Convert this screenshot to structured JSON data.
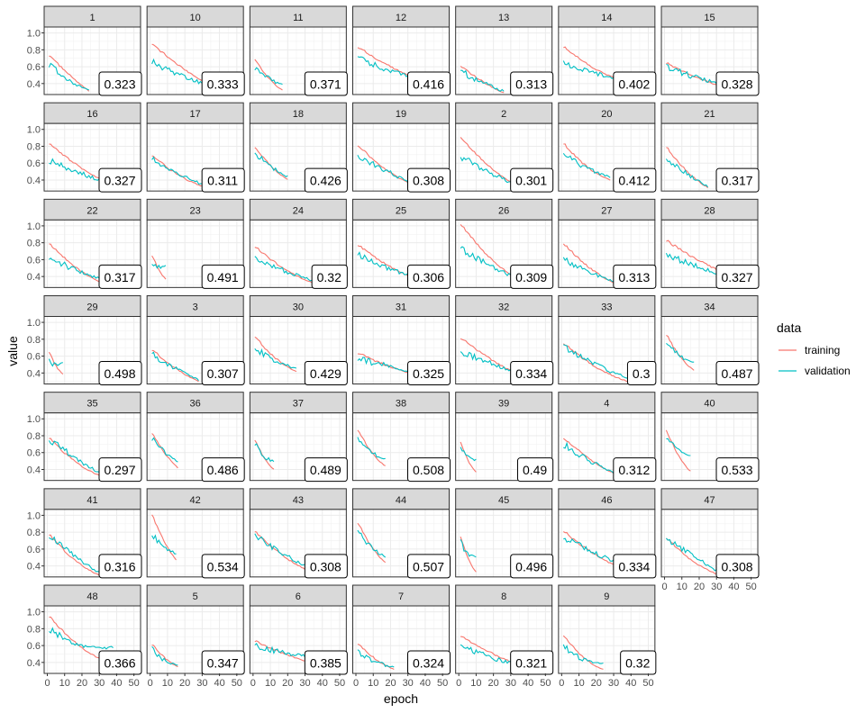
{
  "chart_data": {
    "type": "line",
    "title": "",
    "xlabel": "epoch",
    "ylabel": "value",
    "xlim": [
      0,
      52
    ],
    "ylim": [
      0.27,
      1.07
    ],
    "x_ticks": [
      0,
      10,
      20,
      30,
      40,
      50
    ],
    "y_ticks": [
      0.4,
      0.6,
      0.8,
      1.0
    ],
    "y_tick_labels": [
      "0.4",
      "0.6",
      "0.8",
      "1.0"
    ],
    "grid": true,
    "legend": {
      "title": "data",
      "position": "right",
      "entries": [
        {
          "name": "training",
          "color": "#F8766D"
        },
        {
          "name": "validation",
          "color": "#00BFC4"
        }
      ]
    },
    "series_colors": {
      "training": "#F8766D",
      "validation": "#00BFC4"
    },
    "facets": [
      {
        "label": "1",
        "badge": "0.323",
        "epochs": 24,
        "train": [
          0.74,
          0.49,
          0.31
        ],
        "val": [
          0.62,
          0.42,
          0.32
        ]
      },
      {
        "label": "10",
        "badge": "0.333",
        "epochs": 40,
        "train": [
          0.88,
          0.5,
          0.34
        ],
        "val": [
          0.66,
          0.45,
          0.34
        ]
      },
      {
        "label": "11",
        "badge": "0.371",
        "epochs": 17,
        "train": [
          0.7,
          0.42,
          0.32
        ],
        "val": [
          0.58,
          0.45,
          0.38
        ]
      },
      {
        "label": "12",
        "badge": "0.416",
        "epochs": 45,
        "train": [
          0.84,
          0.52,
          0.4
        ],
        "val": [
          0.7,
          0.5,
          0.42
        ]
      },
      {
        "label": "13",
        "badge": "0.313",
        "epochs": 26,
        "train": [
          0.62,
          0.4,
          0.29
        ],
        "val": [
          0.55,
          0.4,
          0.31
        ]
      },
      {
        "label": "14",
        "badge": "0.402",
        "epochs": 40,
        "train": [
          0.84,
          0.5,
          0.4
        ],
        "val": [
          0.65,
          0.5,
          0.43
        ]
      },
      {
        "label": "15",
        "badge": "0.328",
        "epochs": 45,
        "train": [
          0.65,
          0.4,
          0.3
        ],
        "val": [
          0.6,
          0.42,
          0.34
        ]
      },
      {
        "label": "16",
        "badge": "0.327",
        "epochs": 40,
        "train": [
          0.84,
          0.48,
          0.32
        ],
        "val": [
          0.64,
          0.46,
          0.33
        ]
      },
      {
        "label": "17",
        "badge": "0.311",
        "epochs": 35,
        "train": [
          0.7,
          0.38,
          0.3
        ],
        "val": [
          0.65,
          0.44,
          0.31
        ]
      },
      {
        "label": "18",
        "badge": "0.426",
        "epochs": 20,
        "train": [
          0.8,
          0.52,
          0.41
        ],
        "val": [
          0.72,
          0.54,
          0.44
        ]
      },
      {
        "label": "19",
        "badge": "0.308",
        "epochs": 40,
        "train": [
          0.82,
          0.4,
          0.29
        ],
        "val": [
          0.7,
          0.45,
          0.31
        ]
      },
      {
        "label": "2",
        "badge": "0.301",
        "epochs": 38,
        "train": [
          0.92,
          0.45,
          0.3
        ],
        "val": [
          0.68,
          0.46,
          0.3
        ]
      },
      {
        "label": "20",
        "badge": "0.412",
        "epochs": 28,
        "train": [
          0.84,
          0.5,
          0.4
        ],
        "val": [
          0.7,
          0.52,
          0.43
        ]
      },
      {
        "label": "21",
        "badge": "0.317",
        "epochs": 25,
        "train": [
          0.8,
          0.45,
          0.31
        ],
        "val": [
          0.66,
          0.46,
          0.32
        ]
      },
      {
        "label": "22",
        "badge": "0.317",
        "epochs": 33,
        "train": [
          0.8,
          0.45,
          0.31
        ],
        "val": [
          0.64,
          0.44,
          0.36
        ]
      },
      {
        "label": "23",
        "badge": "0.491",
        "epochs": 9,
        "train": [
          0.66,
          0.45,
          0.37
        ],
        "val": [
          0.55,
          0.5,
          0.52
        ]
      },
      {
        "label": "24",
        "badge": "0.32",
        "epochs": 38,
        "train": [
          0.76,
          0.42,
          0.3
        ],
        "val": [
          0.62,
          0.44,
          0.33
        ]
      },
      {
        "label": "25",
        "badge": "0.306",
        "epochs": 45,
        "train": [
          0.78,
          0.42,
          0.3
        ],
        "val": [
          0.66,
          0.44,
          0.32
        ]
      },
      {
        "label": "26",
        "badge": "0.309",
        "epochs": 40,
        "train": [
          1.03,
          0.48,
          0.31
        ],
        "val": [
          0.73,
          0.48,
          0.32
        ]
      },
      {
        "label": "27",
        "badge": "0.313",
        "epochs": 33,
        "train": [
          0.8,
          0.43,
          0.3
        ],
        "val": [
          0.6,
          0.42,
          0.33
        ]
      },
      {
        "label": "28",
        "badge": "0.327",
        "epochs": 50,
        "train": [
          0.83,
          0.48,
          0.33
        ],
        "val": [
          0.66,
          0.46,
          0.33
        ]
      },
      {
        "label": "29",
        "badge": "0.498",
        "epochs": 9,
        "train": [
          0.66,
          0.45,
          0.39
        ],
        "val": [
          0.53,
          0.5,
          0.52
        ]
      },
      {
        "label": "3",
        "badge": "0.307",
        "epochs": 28,
        "train": [
          0.68,
          0.42,
          0.3
        ],
        "val": [
          0.62,
          0.44,
          0.32
        ]
      },
      {
        "label": "30",
        "badge": "0.429",
        "epochs": 25,
        "train": [
          0.84,
          0.52,
          0.42
        ],
        "val": [
          0.7,
          0.52,
          0.45
        ]
      },
      {
        "label": "31",
        "badge": "0.325",
        "epochs": 45,
        "train": [
          0.64,
          0.42,
          0.32
        ],
        "val": [
          0.57,
          0.45,
          0.37
        ]
      },
      {
        "label": "32",
        "badge": "0.334",
        "epochs": 40,
        "train": [
          0.82,
          0.5,
          0.33
        ],
        "val": [
          0.65,
          0.5,
          0.34
        ]
      },
      {
        "label": "33",
        "badge": "0.3",
        "epochs": 40,
        "train": [
          0.76,
          0.4,
          0.29
        ],
        "val": [
          0.72,
          0.46,
          0.33
        ]
      },
      {
        "label": "34",
        "badge": "0.487",
        "epochs": 17,
        "train": [
          0.86,
          0.55,
          0.43
        ],
        "val": [
          0.76,
          0.56,
          0.52
        ]
      },
      {
        "label": "35",
        "badge": "0.297",
        "epochs": 35,
        "train": [
          0.78,
          0.4,
          0.29
        ],
        "val": [
          0.76,
          0.5,
          0.3
        ]
      },
      {
        "label": "36",
        "badge": "0.486",
        "epochs": 16,
        "train": [
          0.84,
          0.55,
          0.42
        ],
        "val": [
          0.76,
          0.58,
          0.5
        ]
      },
      {
        "label": "37",
        "badge": "0.489",
        "epochs": 12,
        "train": [
          0.76,
          0.5,
          0.4
        ],
        "val": [
          0.7,
          0.52,
          0.5
        ]
      },
      {
        "label": "38",
        "badge": "0.508",
        "epochs": 17,
        "train": [
          0.88,
          0.56,
          0.44
        ],
        "val": [
          0.78,
          0.56,
          0.52
        ]
      },
      {
        "label": "39",
        "badge": "0.49",
        "epochs": 10,
        "train": [
          0.74,
          0.45,
          0.37
        ],
        "val": [
          0.66,
          0.5,
          0.51
        ]
      },
      {
        "label": "4",
        "badge": "0.312",
        "epochs": 35,
        "train": [
          0.78,
          0.45,
          0.31
        ],
        "val": [
          0.7,
          0.46,
          0.32
        ]
      },
      {
        "label": "40",
        "badge": "0.533",
        "epochs": 15,
        "train": [
          0.88,
          0.5,
          0.38
        ],
        "val": [
          0.8,
          0.56,
          0.57
        ]
      },
      {
        "label": "41",
        "badge": "0.316",
        "epochs": 30,
        "train": [
          0.78,
          0.42,
          0.29
        ],
        "val": [
          0.76,
          0.5,
          0.32
        ]
      },
      {
        "label": "42",
        "badge": "0.534",
        "epochs": 15,
        "train": [
          1.02,
          0.65,
          0.47
        ],
        "val": [
          0.78,
          0.58,
          0.55
        ]
      },
      {
        "label": "43",
        "badge": "0.308",
        "epochs": 38,
        "train": [
          0.82,
          0.42,
          0.3
        ],
        "val": [
          0.76,
          0.5,
          0.32
        ]
      },
      {
        "label": "44",
        "badge": "0.507",
        "epochs": 17,
        "train": [
          0.92,
          0.58,
          0.44
        ],
        "val": [
          0.82,
          0.58,
          0.51
        ]
      },
      {
        "label": "45",
        "badge": "0.496",
        "epochs": 10,
        "train": [
          0.76,
          0.42,
          0.33
        ],
        "val": [
          0.68,
          0.5,
          0.51
        ]
      },
      {
        "label": "46",
        "badge": "0.334",
        "epochs": 45,
        "train": [
          0.82,
          0.42,
          0.3
        ],
        "val": [
          0.74,
          0.5,
          0.34
        ]
      },
      {
        "label": "47",
        "badge": "0.308",
        "epochs": 32,
        "train": [
          0.74,
          0.4,
          0.29
        ],
        "val": [
          0.72,
          0.52,
          0.32
        ]
      },
      {
        "label": "48",
        "badge": "0.366",
        "epochs": 38,
        "train": [
          0.95,
          0.5,
          0.38
        ],
        "val": [
          0.8,
          0.52,
          0.58
        ]
      },
      {
        "label": "5",
        "badge": "0.347",
        "epochs": 16,
        "train": [
          0.62,
          0.42,
          0.35
        ],
        "val": [
          0.55,
          0.4,
          0.36
        ]
      },
      {
        "label": "6",
        "badge": "0.385",
        "epochs": 36,
        "train": [
          0.66,
          0.48,
          0.38
        ],
        "val": [
          0.6,
          0.5,
          0.46
        ]
      },
      {
        "label": "7",
        "badge": "0.324",
        "epochs": 22,
        "train": [
          0.63,
          0.4,
          0.32
        ],
        "val": [
          0.54,
          0.38,
          0.34
        ]
      },
      {
        "label": "8",
        "badge": "0.321",
        "epochs": 42,
        "train": [
          0.72,
          0.45,
          0.32
        ],
        "val": [
          0.6,
          0.42,
          0.33
        ]
      },
      {
        "label": "9",
        "badge": "0.32",
        "epochs": 24,
        "train": [
          0.73,
          0.4,
          0.32
        ],
        "val": [
          0.6,
          0.38,
          0.4
        ]
      }
    ]
  }
}
